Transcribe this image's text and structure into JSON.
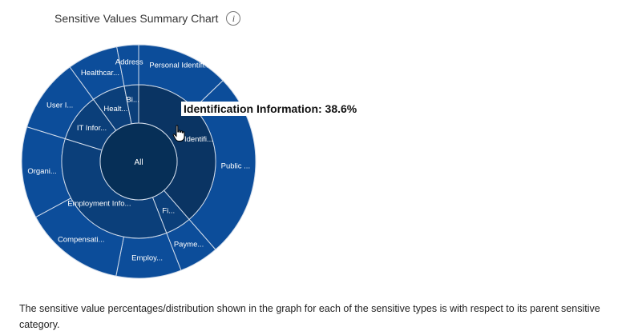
{
  "header": {
    "title": "Sensitive Values Summary Chart",
    "info_icon": "info-icon",
    "info_glyph": "i"
  },
  "tooltip": {
    "text": "Identification Information: 38.6%"
  },
  "cursor": {
    "icon": "hand-pointer-icon"
  },
  "footnote": {
    "text": "The sensitive value percentages/distribution shown in the graph for each of the sensitive types is with respect to its parent sensitive category."
  },
  "colors": {
    "root": "#062f57",
    "inner": "#0b3f7a",
    "outer": "#0c4d9a",
    "hover": "#0a3463",
    "divider": "#d0dbea"
  },
  "chart_data": {
    "type": "sunburst",
    "root": {
      "label": "All"
    },
    "inner_ring": [
      {
        "label": "Identification Information",
        "display": "Identifi...",
        "share": 0.386,
        "hovered": true
      },
      {
        "label": "Financial",
        "display": "Fi...",
        "share": 0.055
      },
      {
        "label": "Employment Information",
        "display": "Employment Info...",
        "share": 0.357
      },
      {
        "label": "IT Information",
        "display": "IT Infor...",
        "share": 0.102
      },
      {
        "label": "Health",
        "display": "Healt...",
        "share": 0.07
      },
      {
        "label": "Biometric",
        "display": "Bi...",
        "share": 0.03
      }
    ],
    "outer_ring": [
      {
        "label": "Personal Identification",
        "display": "Personal Identifi...",
        "share": 0.128,
        "parent": "Identification Information"
      },
      {
        "label": "Public",
        "display": "Public ...",
        "share": 0.258,
        "parent": "Identification Information"
      },
      {
        "label": "Payment",
        "display": "Payme...",
        "share": 0.055,
        "parent": "Financial"
      },
      {
        "label": "Employment",
        "display": "Employ...",
        "share": 0.09,
        "parent": "Employment Information"
      },
      {
        "label": "Compensation",
        "display": "Compensati...",
        "share": 0.14,
        "parent": "Employment Information"
      },
      {
        "label": "Organization",
        "display": "Organi...",
        "share": 0.127,
        "parent": "Employment Information"
      },
      {
        "label": "User Information",
        "display": "User I...",
        "share": 0.102,
        "parent": "IT Information"
      },
      {
        "label": "Healthcare",
        "display": "Healthcar...",
        "share": 0.07,
        "parent": "Health"
      },
      {
        "label": "Address",
        "display": "Address",
        "share": 0.03,
        "parent": "Biometric"
      }
    ]
  }
}
